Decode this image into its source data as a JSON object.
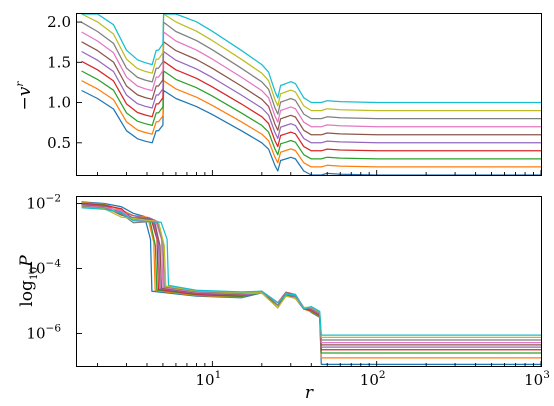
{
  "chart_data": [
    {
      "type": "line",
      "xscale": "log",
      "xlim": [
        1.5,
        1000
      ],
      "ylim": [
        0.1,
        2.1
      ],
      "xlabel": "",
      "ylabel": "-v^r",
      "yticks": [
        0.5,
        1.0,
        1.5,
        2.0
      ],
      "yticklabels": [
        "0.5",
        "1.0",
        "1.5",
        "2.0"
      ],
      "grid": false,
      "colors": [
        "#1f77b4",
        "#ff7f0e",
        "#2ca02c",
        "#d62728",
        "#9467bd",
        "#8c564b",
        "#e377c2",
        "#7f7f7f",
        "#bcbd22",
        "#17becf"
      ],
      "series": [
        {
          "base": 0.1
        },
        {
          "base": 0.2
        },
        {
          "base": 0.3
        },
        {
          "base": 0.4
        },
        {
          "base": 0.5
        },
        {
          "base": 0.6
        },
        {
          "base": 0.7
        },
        {
          "base": 0.8
        },
        {
          "base": 0.9
        },
        {
          "base": 1.0
        }
      ],
      "shape": {
        "x": [
          1.6,
          2.0,
          2.5,
          3.0,
          3.5,
          3.9,
          4.3,
          4.55,
          4.7,
          5.0,
          5.05,
          6,
          8,
          10,
          15,
          20,
          22,
          24,
          25,
          26,
          28,
          30,
          32,
          36,
          40,
          44,
          46,
          50,
          60,
          100,
          200,
          500,
          1000
        ],
        "offset": [
          1.05,
          0.95,
          0.82,
          0.55,
          0.45,
          0.42,
          0.4,
          0.55,
          0.55,
          0.62,
          1.05,
          0.95,
          0.85,
          0.75,
          0.55,
          0.4,
          0.32,
          0.12,
          0.05,
          0.18,
          0.2,
          0.22,
          0.2,
          0.05,
          0.0,
          0.0,
          0.0,
          0.02,
          0.01,
          0.0,
          0.0,
          0.0,
          0.0
        ]
      },
      "scale_note": "each series = base + offset + spread"
    },
    {
      "type": "line",
      "xscale": "log",
      "yscale": "log",
      "xlim": [
        1.5,
        1000
      ],
      "ylim_log10": [
        -7.0,
        -1.8
      ],
      "xlabel": "r",
      "ylabel": "log10 P",
      "xticks": [
        10,
        100,
        1000
      ],
      "xticklabels": [
        [
          "10",
          "1"
        ],
        [
          "10",
          "2"
        ],
        [
          "10",
          "3"
        ]
      ],
      "yticks_log10": [
        -2,
        -4,
        -6
      ],
      "yticklabels": [
        [
          "10",
          "−2"
        ],
        [
          "10",
          "−4"
        ],
        [
          "10",
          "−6"
        ]
      ],
      "grid": false,
      "colors": [
        "#1f77b4",
        "#ff7f0e",
        "#2ca02c",
        "#d62728",
        "#9467bd",
        "#8c564b",
        "#e377c2",
        "#7f7f7f",
        "#bcbd22",
        "#17becf"
      ],
      "series": [
        {
          "drop_x": 4.2,
          "tail_log10": -6.95
        },
        {
          "drop_x": 4.4,
          "tail_log10": -6.75
        },
        {
          "drop_x": 4.5,
          "tail_log10": -6.6
        },
        {
          "drop_x": 4.6,
          "tail_log10": -6.5
        },
        {
          "drop_x": 4.7,
          "tail_log10": -6.42
        },
        {
          "drop_x": 4.8,
          "tail_log10": -6.35
        },
        {
          "drop_x": 4.9,
          "tail_log10": -6.28
        },
        {
          "drop_x": 5.0,
          "tail_log10": -6.2
        },
        {
          "drop_x": 5.1,
          "tail_log10": -6.12
        },
        {
          "drop_x": 5.3,
          "tail_log10": -6.05
        }
      ]
    }
  ],
  "labels": {
    "top_ylabel_main": "−v",
    "top_ylabel_sup": "r",
    "bottom_ylabel_main": "log",
    "bottom_ylabel_sub": "10",
    "bottom_ylabel_var": "P",
    "xlabel": "r"
  }
}
